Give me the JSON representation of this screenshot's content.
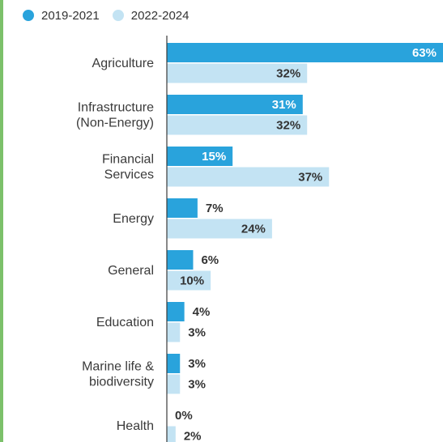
{
  "colors": {
    "series1": "#29a3dc",
    "series2": "#c3e3f3",
    "accent": "#7cc16a",
    "axis": "#3a3a3a",
    "dark_text": "#333333"
  },
  "legend": [
    {
      "label": "2019-2021",
      "color": "#29a3dc"
    },
    {
      "label": "2022-2024",
      "color": "#c3e3f3"
    }
  ],
  "chart_data": {
    "type": "bar",
    "orientation": "horizontal",
    "categories": [
      [
        "Agriculture"
      ],
      [
        "Infrastructure",
        "(Non-Energy)"
      ],
      [
        "Financial",
        "Services"
      ],
      [
        "Energy"
      ],
      [
        "General"
      ],
      [
        "Education"
      ],
      [
        "Marine life &",
        "biodiversity"
      ],
      [
        "Health"
      ]
    ],
    "series": [
      {
        "name": "2019-2021",
        "values": [
          63,
          31,
          15,
          7,
          6,
          4,
          3,
          0
        ],
        "labels": [
          "63%",
          "31%",
          "15%",
          "7%",
          "6%",
          "4%",
          "3%",
          "0%"
        ]
      },
      {
        "name": "2022-2024",
        "values": [
          32,
          32,
          37,
          24,
          10,
          3,
          3,
          2
        ],
        "labels": [
          "32%",
          "32%",
          "37%",
          "24%",
          "10%",
          "3%",
          "3%",
          "2%"
        ]
      }
    ],
    "xlim": [
      0,
      63
    ],
    "grid": false,
    "legend_position": "top-left"
  }
}
